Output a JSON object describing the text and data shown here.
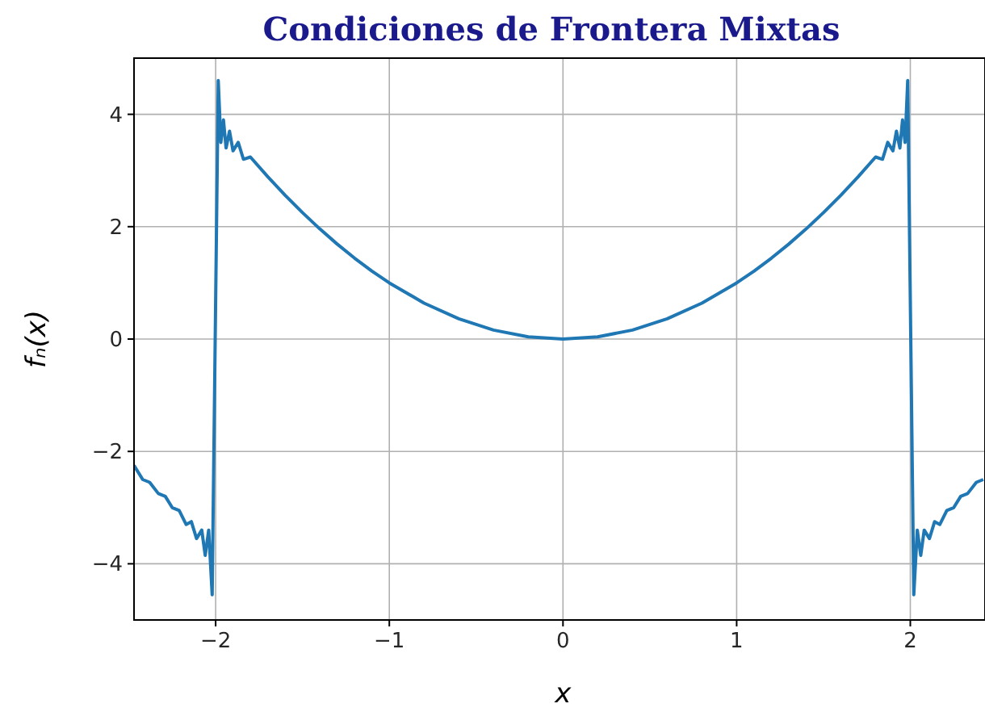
{
  "chart_data": {
    "type": "line",
    "title": "Condiciones de Frontera Mixtas",
    "xlabel": "x",
    "ylabel": "fₙ(x)",
    "xlim": [
      -2.47,
      2.43
    ],
    "ylim": [
      -5,
      5
    ],
    "xticks": [
      {
        "value": -2,
        "label": "−2"
      },
      {
        "value": -1,
        "label": "−1"
      },
      0,
      1,
      2
    ],
    "yticks": [
      {
        "value": -4,
        "label": "−4"
      },
      {
        "value": -2,
        "label": "−2"
      },
      0,
      2,
      4
    ],
    "grid": true,
    "x": [
      -2.47,
      -2.42,
      -2.38,
      -2.33,
      -2.29,
      -2.25,
      -2.21,
      -2.17,
      -2.14,
      -2.11,
      -2.08,
      -2.06,
      -2.04,
      -2.02,
      -1.985,
      -1.97,
      -1.955,
      -1.94,
      -1.92,
      -1.9,
      -1.87,
      -1.84,
      -1.8,
      -1.7,
      -1.6,
      -1.5,
      -1.4,
      -1.3,
      -1.2,
      -1.1,
      -1.0,
      -0.8,
      -0.6,
      -0.4,
      -0.2,
      0,
      0.2,
      0.4,
      0.6,
      0.8,
      1.0,
      1.1,
      1.2,
      1.3,
      1.4,
      1.5,
      1.6,
      1.7,
      1.8,
      1.84,
      1.87,
      1.9,
      1.92,
      1.94,
      1.955,
      1.97,
      1.985,
      2.02,
      2.04,
      2.06,
      2.08,
      2.11,
      2.14,
      2.17,
      2.21,
      2.25,
      2.29,
      2.33,
      2.38,
      2.42
    ],
    "series": [
      {
        "color": "#1f77b4",
        "values": [
          -2.25,
          -2.5,
          -2.55,
          -2.75,
          -2.8,
          -3.0,
          -3.05,
          -3.3,
          -3.25,
          -3.55,
          -3.4,
          -3.85,
          -3.4,
          -4.55,
          4.6,
          3.5,
          3.9,
          3.4,
          3.7,
          3.35,
          3.5,
          3.2,
          3.24,
          2.89,
          2.56,
          2.25,
          1.96,
          1.69,
          1.44,
          1.21,
          1.0,
          0.64,
          0.36,
          0.16,
          0.04,
          0,
          0.04,
          0.16,
          0.36,
          0.64,
          1.0,
          1.21,
          1.44,
          1.69,
          1.96,
          2.25,
          2.56,
          2.89,
          3.24,
          3.2,
          3.5,
          3.35,
          3.7,
          3.4,
          3.9,
          3.5,
          4.6,
          -4.55,
          -3.4,
          -3.85,
          -3.4,
          -3.55,
          -3.25,
          -3.3,
          -3.05,
          -3.0,
          -2.8,
          -2.75,
          -2.55,
          -2.5
        ]
      }
    ]
  }
}
